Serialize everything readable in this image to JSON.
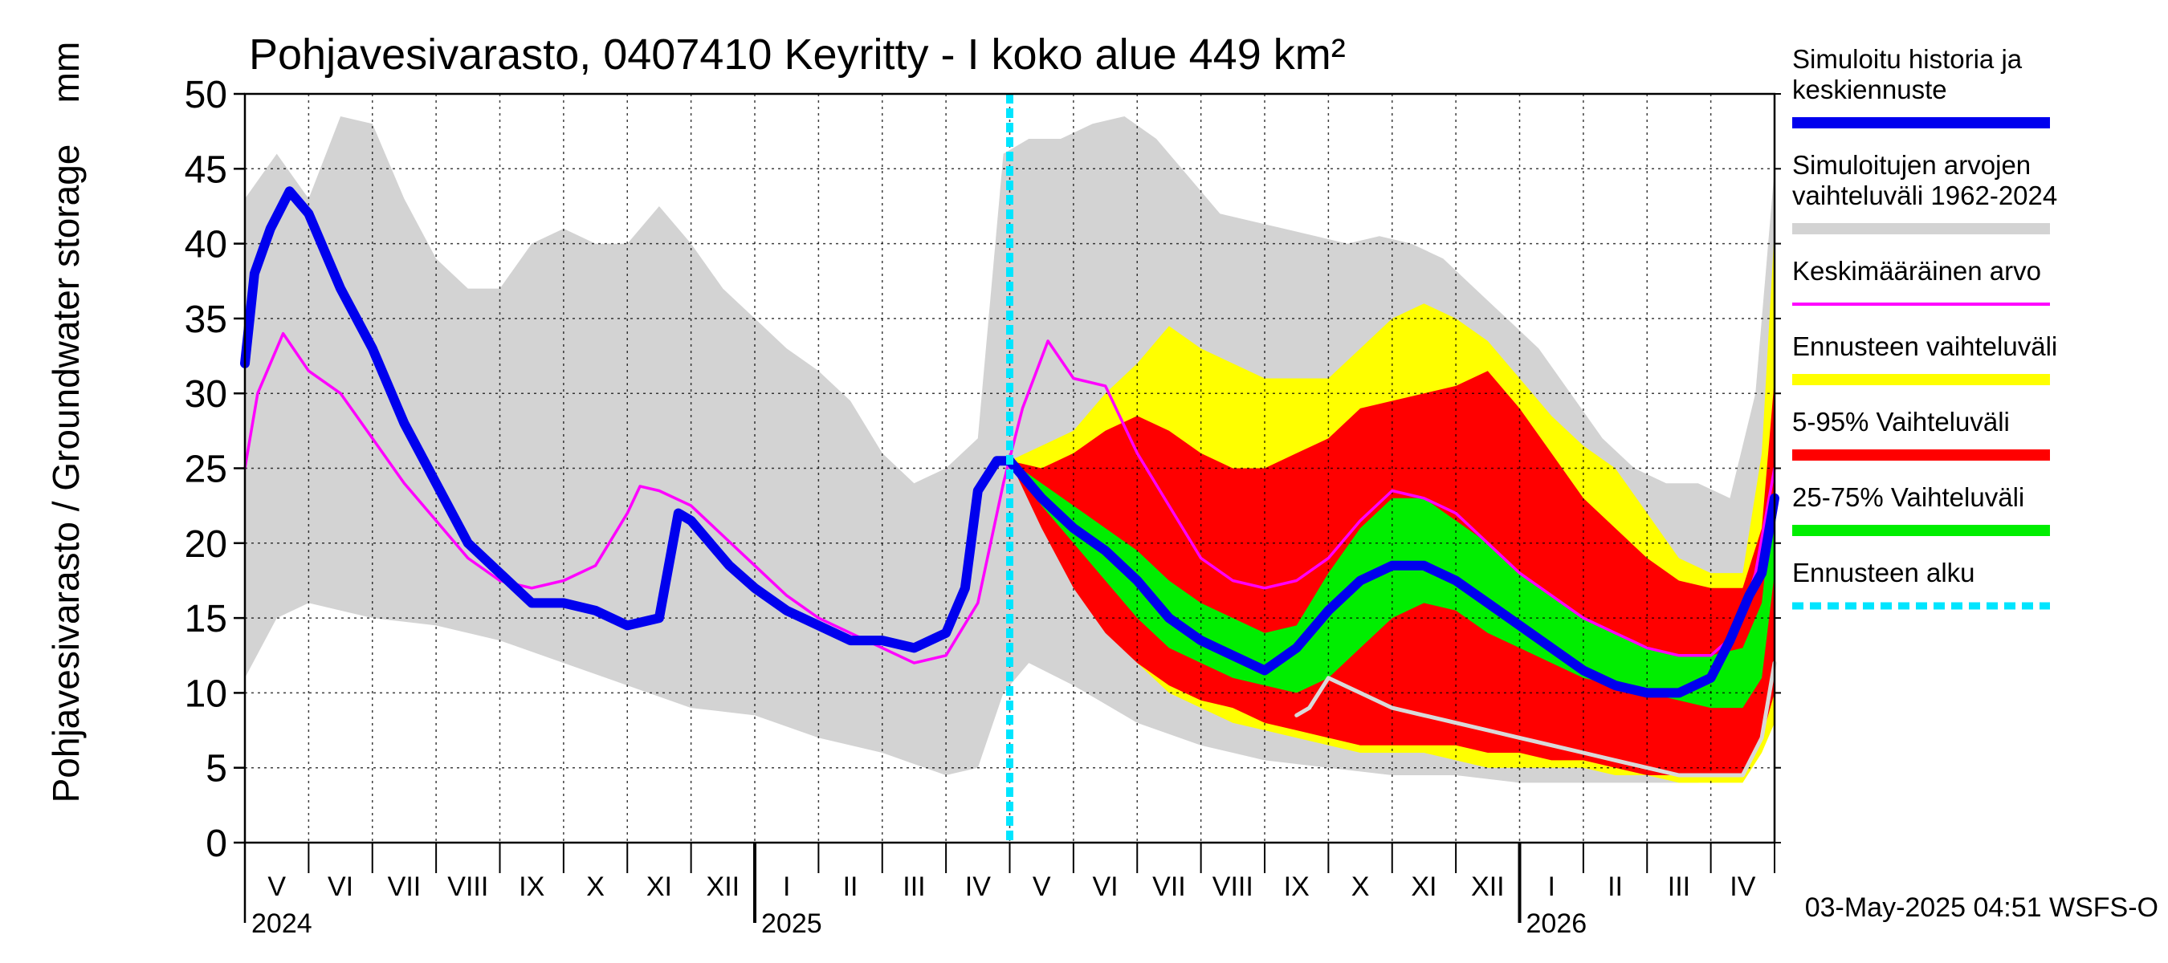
{
  "chart_data": {
    "type": "area",
    "title": "Pohjavesivarasto, 0407410 Keyritty - I koko alue 449 km²",
    "ylabel": "Pohjavesivarasto / Groundwater storage",
    "yunit": "mm",
    "ylim": [
      0,
      50
    ],
    "yticks": [
      "0",
      "5",
      "10",
      "15",
      "20",
      "25",
      "30",
      "35",
      "40",
      "45",
      "50"
    ],
    "xlim": [
      0,
      24
    ],
    "month_labels": [
      "V",
      "VI",
      "VII",
      "VIII",
      "IX",
      "X",
      "XI",
      "XII",
      "I",
      "II",
      "III",
      "IV",
      "V",
      "VI",
      "VII",
      "VIII",
      "IX",
      "X",
      "XI",
      "XII",
      "I",
      "II",
      "III",
      "IV"
    ],
    "year_labels": [
      {
        "label": "2024",
        "month": 0
      },
      {
        "label": "2025",
        "month": 8
      },
      {
        "label": "2026",
        "month": 20
      }
    ],
    "forecast_start_month": 12,
    "footer": "03-May-2025 04:51 WSFS-O",
    "legend": [
      {
        "label": "Simuloitu historia ja keskiennuste",
        "lines": [
          "Simuloitu historia ja",
          "keskiennuste"
        ],
        "color": "#0000ee",
        "style": "thick"
      },
      {
        "label": "Simuloitujen arvojen vaihteluväli 1962-2024",
        "lines": [
          "Simuloitujen arvojen",
          "vaihteluväli 1962-2024"
        ],
        "color": "#d3d3d3",
        "style": "thick"
      },
      {
        "label": "Keskimääräinen arvo",
        "lines": [
          "Keskimääräinen arvo"
        ],
        "color": "#ff00ff",
        "style": "thin"
      },
      {
        "label": "Ennusteen vaihteluväli",
        "lines": [
          "Ennusteen vaihteluväli"
        ],
        "color": "#ffff00",
        "style": "thick"
      },
      {
        "label": "5-95% Vaihteluväli",
        "lines": [
          "5-95% Vaihteluväli"
        ],
        "color": "#ff0000",
        "style": "thick"
      },
      {
        "label": "25-75% Vaihteluväli",
        "lines": [
          "25-75% Vaihteluväli"
        ],
        "color": "#00ee00",
        "style": "thick"
      },
      {
        "label": "Ennusteen alku",
        "lines": [
          "Ennusteen alku"
        ],
        "color": "#00e5ff",
        "style": "dashed"
      }
    ],
    "series": [
      {
        "name": "Simuloitujen arvojen vaihteluväli 1962-2024 (max)",
        "color": "#d3d3d3",
        "x": [
          0,
          0.5,
          1,
          1.5,
          2,
          2.5,
          3,
          3.5,
          4,
          4.5,
          5,
          5.5,
          6,
          6.5,
          7,
          7.5,
          8,
          8.5,
          9,
          9.5,
          10,
          10.5,
          11,
          11.5,
          11.9,
          12.3,
          12.8,
          13.3,
          13.8,
          14.3,
          14.8,
          15.3,
          15.8,
          16.3,
          16.8,
          17.3,
          17.8,
          18.3,
          18.8,
          19.3,
          19.8,
          20.3,
          20.8,
          21.3,
          21.8,
          22.3,
          22.8,
          23.3,
          23.7,
          24
        ],
        "values": [
          43,
          46,
          43,
          48.5,
          48,
          43,
          39,
          37,
          37,
          40,
          41,
          40,
          40,
          42.5,
          40,
          37,
          35,
          33,
          31.5,
          29.5,
          26,
          24,
          25,
          27,
          46,
          47,
          47,
          48,
          48.5,
          47,
          44.5,
          42,
          41.5,
          41,
          40.5,
          40,
          40.5,
          40,
          39,
          37,
          35,
          33,
          30,
          27,
          25,
          24,
          24,
          23,
          30,
          45
        ]
      },
      {
        "name": "Simuloitujen arvojen vaihteluväli 1962-2024 (min)",
        "color": "#d3d3d3",
        "x": [
          0,
          0.5,
          1,
          2,
          3,
          4,
          5,
          6,
          7,
          8,
          9,
          10,
          11,
          11.5,
          11.9,
          12.3,
          13,
          14,
          15,
          16,
          17,
          18,
          19,
          20,
          21,
          22,
          22.8,
          23.3,
          23.7,
          24
        ],
        "values": [
          11,
          15,
          16,
          15,
          14.5,
          13.5,
          12,
          10.5,
          9,
          8.5,
          7,
          6,
          4.5,
          5,
          10,
          12,
          10.5,
          8,
          6.5,
          5.5,
          5,
          4.5,
          4.5,
          4,
          4,
          4,
          4,
          4.5,
          6,
          12
        ]
      },
      {
        "name": "Ennusteen vaihteluväli (max)",
        "color": "#ffff00",
        "x": [
          12,
          12.5,
          13,
          13.5,
          14,
          14.5,
          15,
          15.5,
          16,
          16.5,
          17,
          17.5,
          18,
          18.5,
          19,
          19.5,
          20,
          20.5,
          21,
          21.5,
          22,
          22.5,
          23,
          23.5,
          23.8,
          24
        ],
        "values": [
          25.5,
          26.5,
          27.5,
          30,
          32,
          34.5,
          33,
          32,
          31,
          31,
          31,
          33,
          35,
          36,
          35,
          33.5,
          31,
          28.5,
          26.5,
          25,
          22,
          19,
          18,
          18,
          26,
          41
        ]
      },
      {
        "name": "Ennusteen vaihteluväli (min)",
        "color": "#ffff00",
        "x": [
          12,
          12.5,
          13,
          13.5,
          14,
          14.5,
          15,
          15.5,
          16,
          16.5,
          17,
          17.5,
          18,
          18.5,
          19,
          19.5,
          20,
          20.5,
          21,
          21.5,
          22,
          22.5,
          23,
          23.5,
          23.8,
          24
        ],
        "values": [
          25.5,
          22,
          18,
          15,
          12,
          10,
          9,
          8,
          7.5,
          7,
          6.5,
          6,
          6,
          6,
          5.5,
          5,
          5,
          5,
          5,
          4.5,
          4.5,
          4,
          4,
          4,
          6,
          8
        ]
      },
      {
        "name": "5-95% Vaihteluväli (max)",
        "color": "#ff0000",
        "x": [
          12,
          12.5,
          13,
          13.5,
          14,
          14.5,
          15,
          15.5,
          16,
          16.5,
          17,
          17.5,
          18,
          18.5,
          19,
          19.5,
          20,
          20.5,
          21,
          21.5,
          22,
          22.5,
          23,
          23.5,
          23.8,
          24
        ],
        "values": [
          25.5,
          25,
          26,
          27.5,
          28.5,
          27.5,
          26,
          25,
          25,
          26,
          27,
          29,
          29.5,
          30,
          30.5,
          31.5,
          29,
          26,
          23,
          21,
          19,
          17.5,
          17,
          17,
          21,
          31
        ]
      },
      {
        "name": "5-95% Vaihteluväli (min)",
        "color": "#ff0000",
        "x": [
          12,
          12.5,
          13,
          13.5,
          14,
          14.5,
          15,
          15.5,
          16,
          16.5,
          17,
          17.5,
          18,
          18.5,
          19,
          19.5,
          20,
          20.5,
          21,
          21.5,
          22,
          22.5,
          23,
          23.5,
          23.8,
          24
        ],
        "values": [
          25.5,
          21,
          17,
          14,
          12,
          10.5,
          9.5,
          9,
          8,
          7.5,
          7,
          6.5,
          6.5,
          6.5,
          6.5,
          6,
          6,
          5.5,
          5.5,
          5,
          4.5,
          4.5,
          4.5,
          4.5,
          7,
          10
        ]
      },
      {
        "name": "25-75% Vaihteluväli (max)",
        "color": "#00ee00",
        "x": [
          12,
          12.5,
          13,
          13.5,
          14,
          14.5,
          15,
          15.5,
          16,
          16.5,
          17,
          17.5,
          18,
          18.5,
          19,
          19.5,
          20,
          20.5,
          21,
          21.5,
          22,
          22.5,
          23,
          23.5,
          23.8,
          24
        ],
        "values": [
          25.5,
          24,
          22.5,
          21,
          19.5,
          17.5,
          16,
          15,
          14,
          14.5,
          18,
          21,
          23,
          23,
          21.5,
          20,
          18,
          16.5,
          15,
          14,
          13,
          12.5,
          12.5,
          13,
          16,
          24
        ]
      },
      {
        "name": "25-75% Vaihteluväli (min)",
        "color": "#00ee00",
        "x": [
          12,
          12.5,
          13,
          13.5,
          14,
          14.5,
          15,
          15.5,
          16,
          16.5,
          17,
          17.5,
          18,
          18.5,
          19,
          19.5,
          20,
          20.5,
          21,
          21.5,
          22,
          22.5,
          23,
          23.5,
          23.8,
          24
        ],
        "values": [
          25.5,
          22.5,
          20,
          17.5,
          15,
          13,
          12,
          11,
          10.5,
          10,
          11,
          13,
          15,
          16,
          15.5,
          14,
          13,
          12,
          11,
          10.5,
          10,
          9.5,
          9,
          9,
          11,
          18
        ]
      },
      {
        "name": "Keskimääräinen arvo",
        "color": "#ff00ff",
        "x": [
          0,
          0.2,
          0.6,
          1,
          1.5,
          2,
          2.5,
          3,
          3.5,
          4,
          4.5,
          5,
          5.5,
          6,
          6.2,
          6.5,
          7,
          7.5,
          8,
          8.5,
          9,
          9.5,
          10,
          10.5,
          11,
          11.5,
          11.9,
          12.2,
          12.6,
          13,
          13.5,
          14,
          14.5,
          15,
          15.5,
          16,
          16.5,
          17,
          17.5,
          18,
          18.5,
          19,
          19.5,
          20,
          20.5,
          21,
          21.5,
          22,
          22.5,
          23,
          23.4,
          23.7,
          24
        ],
        "values": [
          25,
          30,
          34,
          31.5,
          30,
          27,
          24,
          21.5,
          19,
          17.5,
          17,
          17.5,
          18.5,
          22,
          23.8,
          23.5,
          22.5,
          20.5,
          18.5,
          16.5,
          15,
          14,
          13,
          12,
          12.5,
          16,
          24,
          29,
          33.5,
          31,
          30.5,
          26,
          22.5,
          19,
          17.5,
          17,
          17.5,
          19,
          21.5,
          23.5,
          23,
          22,
          20,
          18,
          16.5,
          15,
          14,
          13,
          12.5,
          12.5,
          14,
          18,
          25
        ]
      },
      {
        "name": "Simuloitujen arvojen alaraja (ennusteen aikana)",
        "color": "#d9d9d9",
        "x": [
          16.5,
          16.7,
          17,
          17.5,
          18,
          18.5,
          19,
          19.5,
          20,
          20.5,
          21,
          21.5,
          22,
          22.5,
          23,
          23.5,
          23.8,
          24
        ],
        "values": [
          8.5,
          9,
          11,
          10,
          9,
          8.5,
          8,
          7.5,
          7,
          6.5,
          6,
          5.5,
          5,
          4.5,
          4.5,
          4.5,
          7,
          12
        ]
      },
      {
        "name": "Simuloitu historia ja keskiennuste",
        "color": "#0000ee",
        "x": [
          0,
          0.15,
          0.4,
          0.7,
          1,
          1.5,
          2,
          2.5,
          3,
          3.5,
          4,
          4.5,
          5,
          5.5,
          6,
          6.5,
          6.8,
          7,
          7.3,
          7.6,
          8,
          8.5,
          9,
          9.5,
          10,
          10.5,
          11,
          11.3,
          11.5,
          11.8,
          12,
          12.5,
          13,
          13.5,
          14,
          14.5,
          15,
          15.5,
          16,
          16.5,
          17,
          17.5,
          18,
          18.5,
          19,
          19.5,
          20,
          20.5,
          21,
          21.5,
          22,
          22.5,
          23,
          23.3,
          23.6,
          23.8,
          24
        ],
        "values": [
          32,
          38,
          41,
          43.5,
          42,
          37,
          33,
          28,
          24,
          20,
          18,
          16,
          16,
          15.5,
          14.5,
          15,
          22,
          21.5,
          20,
          18.5,
          17,
          15.5,
          14.5,
          13.5,
          13.5,
          13,
          14,
          17,
          23.5,
          25.5,
          25.5,
          23,
          21,
          19.5,
          17.5,
          15,
          13.5,
          12.5,
          11.5,
          13,
          15.5,
          17.5,
          18.5,
          18.5,
          17.5,
          16,
          14.5,
          13,
          11.5,
          10.5,
          10,
          10,
          11,
          13.5,
          16.5,
          18,
          23
        ]
      }
    ]
  }
}
